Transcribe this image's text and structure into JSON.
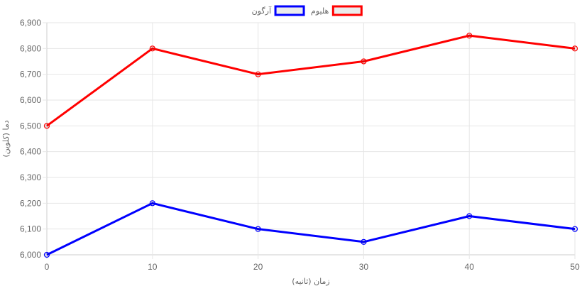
{
  "chart_data": {
    "type": "line",
    "title": "",
    "xlabel": "زمان (ثانیه)",
    "ylabel": "دما (کلوین)",
    "x": [
      0,
      10,
      20,
      30,
      40,
      50
    ],
    "xlim": [
      0,
      50
    ],
    "ylim": [
      6000,
      6900
    ],
    "x_ticks": [
      "0",
      "10",
      "20",
      "30",
      "40",
      "50"
    ],
    "y_ticks": [
      "6,000",
      "6,100",
      "6,200",
      "6,300",
      "6,400",
      "6,500",
      "6,600",
      "6,700",
      "6,800",
      "6,900"
    ],
    "grid": true,
    "legend_position": "top-center",
    "series": [
      {
        "name": "هلیوم",
        "color": "#ff0000",
        "values": [
          6500,
          6800,
          6700,
          6750,
          6850,
          6800
        ]
      },
      {
        "name": "آرگون",
        "color": "#0000ff",
        "values": [
          6000,
          6200,
          6100,
          6050,
          6150,
          6100
        ]
      }
    ]
  }
}
